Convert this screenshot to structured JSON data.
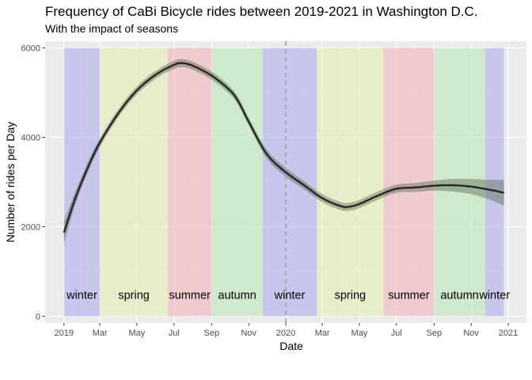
{
  "chart_data": {
    "type": "line",
    "title": "Frequency of CaBi Bicycle rides between 2019-2021 in Washington D.C.",
    "subtitle": "With the impact of seasons",
    "xlabel": "Date",
    "ylabel": "Number of rides per Day",
    "xlim": [
      "2018-12-01",
      "2021-01-31"
    ],
    "ylim": [
      -150,
      6150
    ],
    "yticks": [
      0,
      2000,
      4000,
      6000
    ],
    "xticks": [
      {
        "date": "2019-01-01",
        "label": "2019"
      },
      {
        "date": "2019-03-01",
        "label": "Mar"
      },
      {
        "date": "2019-05-01",
        "label": "May"
      },
      {
        "date": "2019-07-01",
        "label": "Jul"
      },
      {
        "date": "2019-09-01",
        "label": "Sep"
      },
      {
        "date": "2019-11-01",
        "label": "Nov"
      },
      {
        "date": "2020-01-01",
        "label": "2020"
      },
      {
        "date": "2020-03-01",
        "label": "Mar"
      },
      {
        "date": "2020-05-01",
        "label": "May"
      },
      {
        "date": "2020-07-01",
        "label": "Jul"
      },
      {
        "date": "2020-09-01",
        "label": "Sep"
      },
      {
        "date": "2020-11-01",
        "label": "Nov"
      },
      {
        "date": "2021-01-01",
        "label": "2021"
      }
    ],
    "grid": true,
    "vline": {
      "date": "2020-01-01",
      "style": "dashed"
    },
    "seasons": [
      {
        "label": "winter",
        "start": "2019-01-01",
        "end": "2019-03-01",
        "color": "#aaaaf0"
      },
      {
        "label": "spring",
        "start": "2019-03-01",
        "end": "2019-06-21",
        "color": "#e8ecb0"
      },
      {
        "label": "summer",
        "start": "2019-06-21",
        "end": "2019-09-01",
        "color": "#f2aeb6"
      },
      {
        "label": "autumn",
        "start": "2019-09-01",
        "end": "2019-11-24",
        "color": "#b6e8b2"
      },
      {
        "label": "winter",
        "start": "2019-11-24",
        "end": "2020-02-21",
        "color": "#aaaaf0"
      },
      {
        "label": "spring",
        "start": "2020-02-21",
        "end": "2020-06-10",
        "color": "#e8ecb0"
      },
      {
        "label": "summer",
        "start": "2020-06-10",
        "end": "2020-09-01",
        "color": "#f2aeb6"
      },
      {
        "label": "autumn",
        "start": "2020-09-01",
        "end": "2020-11-24",
        "color": "#b6e8b2"
      },
      {
        "label": "winter",
        "start": "2020-11-24",
        "end": "2020-12-25",
        "color": "#aaaaf0"
      }
    ],
    "season_label_y": 480,
    "series": [
      {
        "line_color": "#262626",
        "band_color": "#4a5e3e",
        "points": [
          {
            "x": "2019-01-01",
            "y": 1870,
            "lo": 1620,
            "hi": 2120
          },
          {
            "x": "2019-01-20",
            "y": 2650,
            "lo": 2500,
            "hi": 2800
          },
          {
            "x": "2019-02-10",
            "y": 3350,
            "lo": 3230,
            "hi": 3470
          },
          {
            "x": "2019-03-01",
            "y": 3880,
            "lo": 3780,
            "hi": 3980
          },
          {
            "x": "2019-04-01",
            "y": 4550,
            "lo": 4460,
            "hi": 4640
          },
          {
            "x": "2019-05-01",
            "y": 5050,
            "lo": 4960,
            "hi": 5140
          },
          {
            "x": "2019-06-01",
            "y": 5400,
            "lo": 5310,
            "hi": 5490
          },
          {
            "x": "2019-07-01",
            "y": 5620,
            "lo": 5530,
            "hi": 5710
          },
          {
            "x": "2019-07-15",
            "y": 5660,
            "lo": 5570,
            "hi": 5750
          },
          {
            "x": "2019-08-01",
            "y": 5600,
            "lo": 5510,
            "hi": 5690
          },
          {
            "x": "2019-09-01",
            "y": 5380,
            "lo": 5290,
            "hi": 5470
          },
          {
            "x": "2019-10-01",
            "y": 5050,
            "lo": 4960,
            "hi": 5140
          },
          {
            "x": "2019-10-15",
            "y": 4800,
            "lo": 4710,
            "hi": 4890
          },
          {
            "x": "2019-11-01",
            "y": 4350,
            "lo": 4260,
            "hi": 4440
          },
          {
            "x": "2019-12-01",
            "y": 3620,
            "lo": 3520,
            "hi": 3720
          },
          {
            "x": "2020-01-01",
            "y": 3220,
            "lo": 3120,
            "hi": 3320
          },
          {
            "x": "2020-02-01",
            "y": 2920,
            "lo": 2830,
            "hi": 3010
          },
          {
            "x": "2020-03-01",
            "y": 2640,
            "lo": 2550,
            "hi": 2730
          },
          {
            "x": "2020-04-01",
            "y": 2460,
            "lo": 2370,
            "hi": 2550
          },
          {
            "x": "2020-04-15",
            "y": 2450,
            "lo": 2360,
            "hi": 2540
          },
          {
            "x": "2020-05-01",
            "y": 2510,
            "lo": 2420,
            "hi": 2600
          },
          {
            "x": "2020-06-01",
            "y": 2700,
            "lo": 2610,
            "hi": 2790
          },
          {
            "x": "2020-07-01",
            "y": 2850,
            "lo": 2760,
            "hi": 2940
          },
          {
            "x": "2020-08-01",
            "y": 2880,
            "lo": 2780,
            "hi": 2980
          },
          {
            "x": "2020-09-01",
            "y": 2920,
            "lo": 2810,
            "hi": 3030
          },
          {
            "x": "2020-10-01",
            "y": 2930,
            "lo": 2790,
            "hi": 3070
          },
          {
            "x": "2020-11-01",
            "y": 2900,
            "lo": 2730,
            "hi": 3070
          },
          {
            "x": "2020-12-01",
            "y": 2830,
            "lo": 2610,
            "hi": 3050
          },
          {
            "x": "2020-12-25",
            "y": 2760,
            "lo": 2470,
            "hi": 3050
          }
        ]
      }
    ]
  }
}
